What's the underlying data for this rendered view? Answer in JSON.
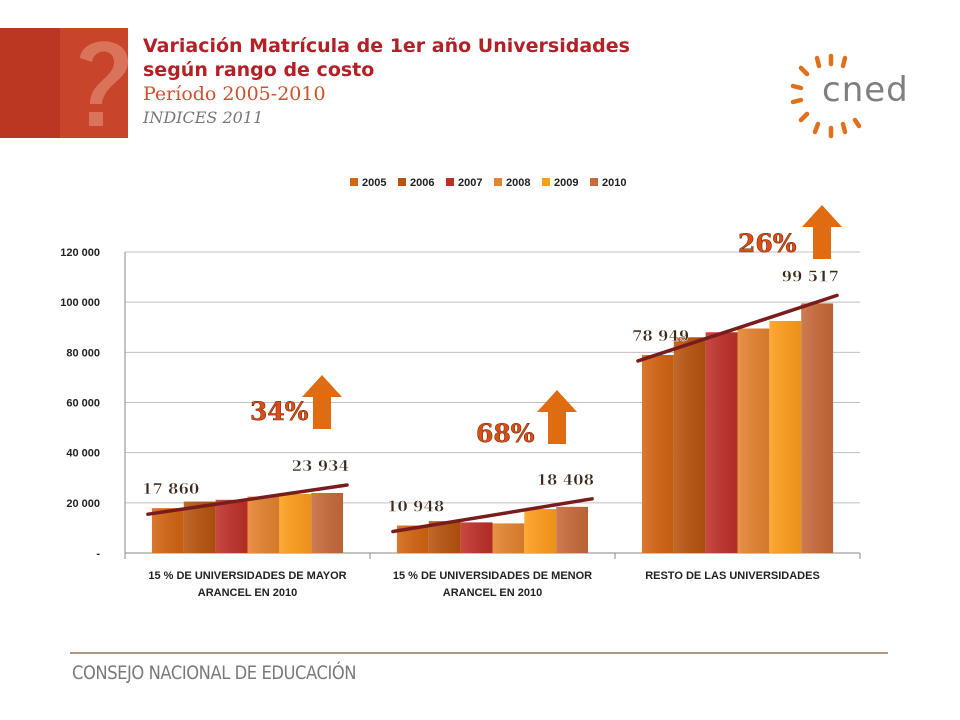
{
  "header": {
    "title_line1": "Variación Matrícula de 1er año Universidades",
    "title_line2": "según  rango de costo",
    "period": "Período 2005-2010",
    "subtitle": "INDICES 2011"
  },
  "logo": {
    "text": "cned",
    "icon": "cned-sunburst-logo"
  },
  "footer": {
    "text": "CONSEJO NACIONAL DE EDUCACIÓN"
  },
  "colors": {
    "title": "#b32025",
    "period": "#d0502a",
    "arrow": "#e06c12",
    "percent_text": "#d94f16",
    "trend_line": "#7b1c1c",
    "series": [
      "#d46512",
      "#b8540e",
      "#c0302a",
      "#e58430",
      "#ff9e1b",
      "#c96a3a"
    ]
  },
  "chart_data": {
    "type": "bar",
    "categories": [
      "15 % de universidades de mayor arancel en 2010",
      "15 % de universidades de menor arancel en 2010",
      "Resto de las Universidades"
    ],
    "category_labels": [
      [
        "15 % DE UNIVERSIDADES DE MAYOR",
        "ARANCEL EN 2010"
      ],
      [
        "15 % DE UNIVERSIDADES DE MENOR",
        "ARANCEL EN 2010"
      ],
      [
        "RESTO DE LAS UNIVERSIDADES"
      ]
    ],
    "series": [
      {
        "name": "2005",
        "values": [
          17860,
          10948,
          78949
        ]
      },
      {
        "name": "2006",
        "values": [
          20500,
          12700,
          86000
        ]
      },
      {
        "name": "2007",
        "values": [
          21200,
          12200,
          88000
        ]
      },
      {
        "name": "2008",
        "values": [
          22500,
          11800,
          89500
        ]
      },
      {
        "name": "2009",
        "values": [
          23500,
          17500,
          92500
        ]
      },
      {
        "name": "2010",
        "values": [
          23934,
          18408,
          99517
        ]
      }
    ],
    "ylim": [
      0,
      120000
    ],
    "yticks": [
      "-",
      "20 000",
      "40 000",
      "60 000",
      "80 000",
      "100 000",
      "120 000"
    ],
    "ytick_values": [
      0,
      20000,
      40000,
      60000,
      80000,
      100000,
      120000
    ],
    "grid": true,
    "legend_position": "top",
    "data_labels": [
      {
        "start": "17 860",
        "end": "23 934",
        "change": "34%"
      },
      {
        "start": "10 948",
        "end": "18 408",
        "change": "68%"
      },
      {
        "start": "78 949",
        "end": "99 517",
        "change": "26%"
      }
    ]
  }
}
